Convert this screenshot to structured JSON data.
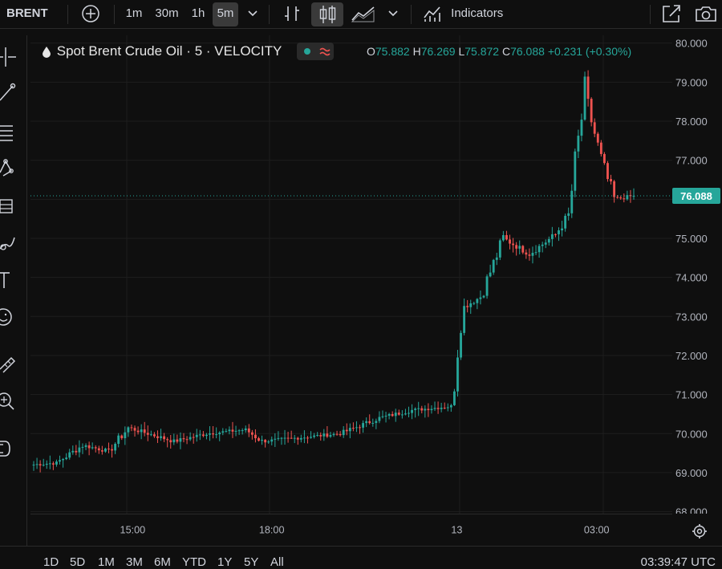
{
  "toolbar": {
    "symbol": "BRENT",
    "intervals": [
      "1m",
      "30m",
      "1h",
      "5m"
    ],
    "active_interval": "5m",
    "indicators_label": "Indicators"
  },
  "legend": {
    "title": "Spot Brent Crude Oil · 5 · VELOCITY",
    "o_label": "O",
    "o": "75.882",
    "h_label": "H",
    "h": "76.269",
    "l_label": "L",
    "l": "75.872",
    "c_label": "C",
    "c": "76.088",
    "change": "+0.231 (+0.30%)"
  },
  "colors": {
    "up": "#26a69a",
    "down": "#ef5350",
    "last_price": "#26a69a",
    "background": "#0f0f0f",
    "grid": "#1e1e1e"
  },
  "chart_data": {
    "type": "candlestick",
    "interval": "5m",
    "y_ticks": [
      "80.000",
      "79.000",
      "78.000",
      "77.000",
      "76.000",
      "75.000",
      "74.000",
      "73.000",
      "72.000",
      "71.000",
      "70.000",
      "69.000",
      "68.000"
    ],
    "ylim": [
      67.95,
      80.2
    ],
    "x_ticks": [
      "15:00",
      "18:00",
      "13",
      "03:00"
    ],
    "last_price": "76.088",
    "grid": true,
    "segments": [
      {
        "from": 69.2,
        "to": 69.25,
        "n": 8
      },
      {
        "from": 69.25,
        "to": 69.7,
        "n": 8
      },
      {
        "from": 69.7,
        "to": 69.55,
        "n": 8
      },
      {
        "from": 69.55,
        "to": 70.15,
        "n": 6
      },
      {
        "from": 70.15,
        "to": 69.95,
        "n": 8
      },
      {
        "from": 69.95,
        "to": 69.8,
        "n": 6
      },
      {
        "from": 69.8,
        "to": 70.0,
        "n": 10
      },
      {
        "from": 70.0,
        "to": 70.1,
        "n": 12
      },
      {
        "from": 70.1,
        "to": 69.8,
        "n": 5
      },
      {
        "from": 69.8,
        "to": 69.9,
        "n": 12
      },
      {
        "from": 69.9,
        "to": 70.0,
        "n": 12
      },
      {
        "from": 70.0,
        "to": 70.4,
        "n": 12
      },
      {
        "from": 70.4,
        "to": 70.6,
        "n": 10
      },
      {
        "from": 70.6,
        "to": 70.7,
        "n": 12
      },
      {
        "from": 70.7,
        "to": 73.2,
        "n": 3
      },
      {
        "from": 73.2,
        "to": 73.5,
        "n": 6
      },
      {
        "from": 73.5,
        "to": 75.0,
        "n": 7
      },
      {
        "from": 75.0,
        "to": 74.6,
        "n": 8
      },
      {
        "from": 74.6,
        "to": 75.1,
        "n": 8
      },
      {
        "from": 75.1,
        "to": 75.6,
        "n": 4
      },
      {
        "from": 75.6,
        "to": 78.7,
        "n": 5
      },
      {
        "from": 78.7,
        "to": 77.0,
        "n": 5
      },
      {
        "from": 77.0,
        "to": 76.0,
        "n": 4
      },
      {
        "from": 76.0,
        "to": 76.09,
        "n": 6
      }
    ]
  },
  "bottombar": {
    "ranges": [
      "1D",
      "5D",
      "1M",
      "3M",
      "6M",
      "YTD",
      "1Y",
      "5Y",
      "All"
    ],
    "clock": "03:39:47 UTC"
  }
}
